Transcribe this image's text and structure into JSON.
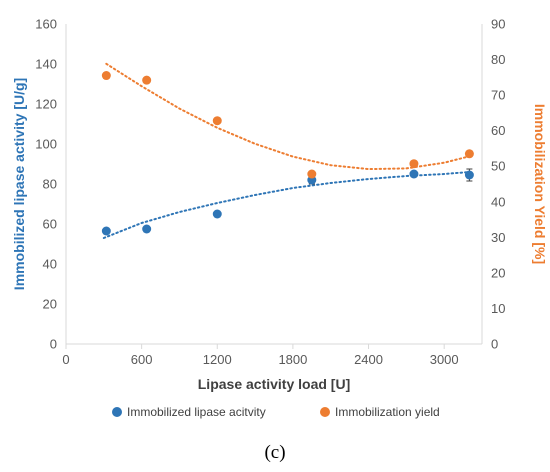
{
  "chart_data": {
    "type": "scatter",
    "title": "",
    "xlabel": "Lipase activity load [U]",
    "ylabel_left": "Immobilized lipase activity [U/g]",
    "ylabel_right": "Immobilization Yield [%]",
    "caption": "(c)",
    "xlim": [
      0,
      3300
    ],
    "ylim_left": [
      0,
      160
    ],
    "ylim_right": [
      0,
      90
    ],
    "x_ticks": [
      0,
      600,
      1200,
      1800,
      2400,
      3000
    ],
    "y_left_ticks": [
      0,
      20,
      40,
      60,
      80,
      100,
      120,
      140,
      160
    ],
    "y_right_ticks": [
      0,
      10,
      20,
      30,
      40,
      50,
      60,
      70,
      80,
      90
    ],
    "grid": false,
    "legend_position": "bottom",
    "colors": {
      "activity": "#2E75B6",
      "yield": "#ED7D31",
      "axis": "#D9D9D9",
      "tick_text": "#595959"
    },
    "series": [
      {
        "name": "Immobilized lipase acitvity",
        "axis": "left",
        "marker": "circle",
        "x": [
          320,
          640,
          1200,
          1950,
          2760,
          3200
        ],
        "y": [
          56.5,
          57.5,
          65,
          82,
          85,
          84.5
        ],
        "error": [
          0,
          0,
          0,
          2,
          0,
          3
        ],
        "trendline": {
          "style": "dotted",
          "x": [
            300,
            600,
            900,
            1200,
            1500,
            1800,
            2100,
            2400,
            2700,
            3000,
            3200
          ],
          "y": [
            53,
            60.5,
            66,
            70.5,
            74.5,
            78,
            80.5,
            82.5,
            84,
            85,
            86
          ]
        }
      },
      {
        "name": "Immobilization yield",
        "axis": "right",
        "marker": "circle",
        "x": [
          320,
          640,
          1200,
          1950,
          2760,
          3200
        ],
        "y": [
          75.5,
          74.2,
          62.8,
          47.8,
          50.7,
          53.5
        ],
        "error": [
          0,
          0,
          0,
          0,
          0,
          0
        ],
        "trendline": {
          "style": "dotted",
          "x": [
            320,
            600,
            900,
            1200,
            1500,
            1800,
            2100,
            2400,
            2700,
            3000,
            3200
          ],
          "y": [
            78.8,
            72.5,
            66.2,
            60.8,
            56.3,
            52.7,
            50.3,
            49.2,
            49.4,
            51,
            52.8
          ]
        }
      }
    ]
  }
}
